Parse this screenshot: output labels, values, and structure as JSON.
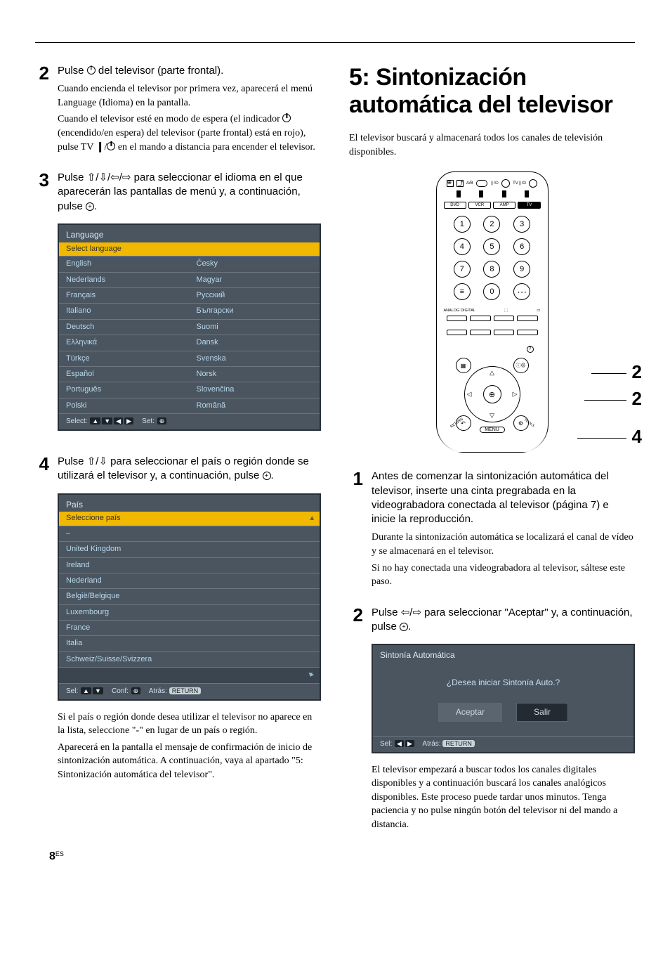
{
  "left": {
    "step2": {
      "num": "2",
      "lead_pre": "Pulse ",
      "lead_post": " del televisor (parte frontal).",
      "p1": "Cuando encienda el televisor por primera vez, aparecerá el menú Language (Idioma) en la pantalla.",
      "p2_a": "Cuando el televisor esté en modo de espera (el indicador ",
      "p2_b": " (encendido/en espera) del televisor (parte frontal) está en rojo), pulse TV ",
      "p2_bar": "❙",
      "p2_c": "/",
      "p2_d": " en el mando a distancia para encender el televisor."
    },
    "step3": {
      "num": "3",
      "lead_a": "Pulse ",
      "arrows": "⇧/⇩/⇦/⇨",
      "lead_b": " para seleccionar el idioma en el que aparecerán las pantallas de menú y, a continuación, pulse ",
      "lead_c": "."
    },
    "osd_lang": {
      "title": "Language",
      "sub": "Select language",
      "rows": [
        [
          "English",
          "Česky"
        ],
        [
          "Nederlands",
          "Magyar"
        ],
        [
          "Français",
          "Русский"
        ],
        [
          "Italiano",
          "Български"
        ],
        [
          "Deutsch",
          "Suomi"
        ],
        [
          "Ελληνικά",
          "Dansk"
        ],
        [
          "Türkçe",
          "Svenska"
        ],
        [
          "Español",
          "Norsk"
        ],
        [
          "Português",
          "Slovenčina"
        ],
        [
          "Polski",
          "Română"
        ]
      ],
      "footer_a": "Select:",
      "footer_b": "Set:"
    },
    "step4": {
      "num": "4",
      "lead_a": "Pulse ",
      "arrows": "⇧/⇩",
      "lead_b": " para seleccionar el país o región donde se utilizará el televisor y, a continuación, pulse ",
      "lead_c": "."
    },
    "osd_pais": {
      "title": "País",
      "sub": "Seleccione país",
      "rows": [
        "–",
        "United Kingdom",
        "Ireland",
        "Nederland",
        "België/Belgique",
        "Luxembourg",
        "France",
        "Italia",
        "Schweiz/Suisse/Svizzera",
        ""
      ],
      "footer_a": "Sel:",
      "footer_b": "Conf:",
      "footer_c": "Atrás:",
      "return": "RETURN"
    },
    "after4_p1": "Si el país o región donde desea utilizar el televisor no aparece en la lista, seleccione \"-\" en lugar de un país o región.",
    "after4_p2": "Aparecerá en la pantalla el mensaje de confirmación de inicio de sintonización automática. A continuación, vaya al apartado \"5: Sintonización automática del televisor\"."
  },
  "right": {
    "title": "5: Sintonización automática del televisor",
    "intro": "El televisor buscará y almacenará todos los canales de televisión disponibles.",
    "remote": {
      "top_labels": {
        "ab": "A/B",
        "io": "❙/⏻",
        "tvio": "TV❙/⏻"
      },
      "src": [
        "DVD",
        "VCR",
        "AMP",
        "TV"
      ],
      "analog_digital": "ANALOG DIGITAL",
      "menu": "MENU",
      "return": "RETURN",
      "tools": "TOOLS"
    },
    "callouts": {
      "c1": "2",
      "c2": "2",
      "c3": "4"
    },
    "step1": {
      "num": "1",
      "lead": "Antes de comenzar la sintonización automática del televisor, inserte una cinta pregrabada en la videograbadora conectada al televisor (página 7) e inicie la reproducción.",
      "p1": "Durante la sintonización automática se localizará el canal de vídeo y se almacenará en el televisor.",
      "p2": "Si no hay conectada una videograbadora al televisor, sáltese este paso."
    },
    "step2": {
      "num": "2",
      "lead_a": "Pulse ",
      "arrows": "⇦/⇨",
      "lead_b": " para seleccionar \"Aceptar\" y, a continuación, pulse ",
      "lead_c": "."
    },
    "osd_auto": {
      "title": "Sintonía Automática",
      "q": "¿Desea iniciar Sintonía Auto.?",
      "ok": "Aceptar",
      "cancel": "Salir",
      "footer_a": "Sel:",
      "footer_b": "Atrás:",
      "return": "RETURN"
    },
    "after2": "El televisor empezará a buscar todos los canales digitales disponibles y a continuación buscará los canales analógicos disponibles. Este proceso puede tardar unos minutos. Tenga paciencia y no pulse ningún botón del televisor ni del mando a distancia."
  },
  "page": {
    "num": "8",
    "lang": "ES"
  },
  "colors": {
    "osd_bg": "#4a5560",
    "osd_text": "#c4dff0",
    "osd_highlight": "#f0b800"
  }
}
